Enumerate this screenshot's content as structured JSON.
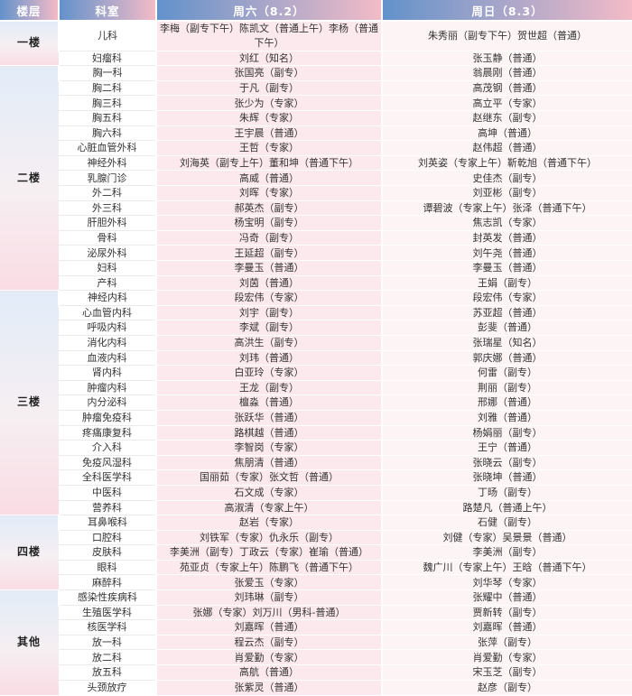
{
  "colors": {
    "header_gradient_left": "#6292cb",
    "header_gradient_right": "#f3bbc7",
    "saturday_cell_bg": "#fbe9ed",
    "sunday_cell_bg": "#fdf4f6",
    "floor_cell_blue": "#e2ecf8",
    "floor_cell_pink": "#fadce4",
    "header_text": "#ffffff",
    "body_text": "#333333"
  },
  "table": {
    "headers": {
      "floor": "楼层",
      "department": "科室",
      "saturday": "周六（8.2）",
      "sunday": "周日（8.3）"
    },
    "groups": [
      {
        "floor": "一楼",
        "rows": [
          {
            "dept": "儿科",
            "sat": "李梅（副专下午）陈凯文（普通上午）李杨（普通下午）",
            "sun": "朱秀丽（副专下午）贺世超（普通）",
            "tall": true
          },
          {
            "dept": "妇瘤科",
            "sat": "刘红（知名）",
            "sun": "张玉静（普通）"
          }
        ]
      },
      {
        "floor": "二楼",
        "rows": [
          {
            "dept": "胸一科",
            "sat": "张国亮（副专）",
            "sun": "翁晨刚（普通）"
          },
          {
            "dept": "胸二科",
            "sat": "于凡（副专）",
            "sun": "高茂钢（普通）"
          },
          {
            "dept": "胸三科",
            "sat": "张少为（专家）",
            "sun": "高立平（专家）"
          },
          {
            "dept": "胸五科",
            "sat": "朱辉（专家）",
            "sun": "赵继东（副专）"
          },
          {
            "dept": "胸六科",
            "sat": "王宇晨（普通）",
            "sun": "高坤（普通）"
          },
          {
            "dept": "心脏血管外科",
            "sat": "王哲（专家）",
            "sun": "赵伟超（普通）"
          },
          {
            "dept": "神经外科",
            "sat": "刘海英（副专上午）董和坤（普通下午）",
            "sun": "刘英姿（专家上午）靳乾旭（普通下午）"
          },
          {
            "dept": "乳腺门诊",
            "sat": "高威（普通）",
            "sun": "史佳杰（副专）"
          },
          {
            "dept": "外二科",
            "sat": "刘晖（专家）",
            "sun": "刘亚彬（副专）"
          },
          {
            "dept": "外三科",
            "sat": "郝英杰（副专）",
            "sun": "谭碧波（专家上午）张泽（普通下午）"
          },
          {
            "dept": "肝胆外科",
            "sat": "杨宝明（副专）",
            "sun": "焦志凯（专家）"
          },
          {
            "dept": "骨科",
            "sat": "冯奇（副专）",
            "sun": "封英发（普通）"
          },
          {
            "dept": "泌尿外科",
            "sat": "王延超（副专）",
            "sun": "刘午尧（普通）"
          },
          {
            "dept": "妇科",
            "sat": "李曼玉（普通）",
            "sun": "李曼玉（普通）"
          },
          {
            "dept": "产科",
            "sat": "刘茵（普通）",
            "sun": "王娟（副专）"
          }
        ]
      },
      {
        "floor": "三楼",
        "rows": [
          {
            "dept": "神经内科",
            "sat": "段宏伟（专家）",
            "sun": "段宏伟（专家）"
          },
          {
            "dept": "心血管内科",
            "sat": "刘宇（副专）",
            "sun": "苏亚超（普通）"
          },
          {
            "dept": "呼吸内科",
            "sat": "李斌（副专）",
            "sun": "彭斐（普通）"
          },
          {
            "dept": "消化内科",
            "sat": "高洪生（副专）",
            "sun": "张瑞星（知名）"
          },
          {
            "dept": "血液内科",
            "sat": "刘玮（普通）",
            "sun": "郭庆娜（普通）"
          },
          {
            "dept": "肾内科",
            "sat": "白亚玲（专家）",
            "sun": "何雷（副专）"
          },
          {
            "dept": "肿瘤内科",
            "sat": "王龙（副专）",
            "sun": "荆丽（副专）"
          },
          {
            "dept": "内分泌科",
            "sat": "檀淼（普通）",
            "sun": "邢娜（普通）"
          },
          {
            "dept": "肿瘤免疫科",
            "sat": "张跃华（普通）",
            "sun": "刘雅（普通）"
          },
          {
            "dept": "疼痛康复科",
            "sat": "路棋越（普通）",
            "sun": "杨娟丽（副专）"
          },
          {
            "dept": "介入科",
            "sat": "李智岗（专家）",
            "sun": "王宁（普通）"
          },
          {
            "dept": "免疫风湿科",
            "sat": "焦朋清（普通）",
            "sun": "张晓云（副专）"
          },
          {
            "dept": "全科医学科",
            "sat": "国丽茹（专家）张文哲（普通）",
            "sun": "张晓坤（普通）"
          },
          {
            "dept": "中医科",
            "sat": "石文成（专家）",
            "sun": "丁旸（副专）"
          },
          {
            "dept": "营养科",
            "sat": "高淑清（专家上午）",
            "sun": "路楚凡（普通上午）"
          }
        ]
      },
      {
        "floor": "四楼",
        "rows": [
          {
            "dept": "耳鼻喉科",
            "sat": "赵岩（专家）",
            "sun": "石健（副专）"
          },
          {
            "dept": "口腔科",
            "sat": "刘铁军（专家）仇永乐（副专）",
            "sun": "刘健（专家）吴景景（普通）"
          },
          {
            "dept": "皮肤科",
            "sat": "李美洲（副专）丁政云（专家）崔瑜（普通）",
            "sun": "李美洲（副专）"
          },
          {
            "dept": "眼科",
            "sat": "苑亚贞（专家上午）陈鹏飞（普通下午）",
            "sun": "魏广川（专家上午）王晗（普通下午）"
          },
          {
            "dept": "麻醉科",
            "sat": "张爱玉（专家）",
            "sun": "刘华琴（专家）"
          }
        ]
      },
      {
        "floor": "其他",
        "rows": [
          {
            "dept": "感染性疾病科",
            "sat": "刘玮琳（副专）",
            "sun": "张耀中（普通）"
          },
          {
            "dept": "生殖医学科",
            "sat": "张娜（专家）刘万川（男科-普通）",
            "sun": "贾新转（副专）"
          },
          {
            "dept": "核医学科",
            "sat": "刘嘉晖（普通）",
            "sun": "刘嘉晖（普通）"
          },
          {
            "dept": "放一科",
            "sat": "程云杰（副专）",
            "sun": "张萍（副专）"
          },
          {
            "dept": "放二科",
            "sat": "肖爱勤（专家）",
            "sun": "肖爱勤（专家）"
          },
          {
            "dept": "放五科",
            "sat": "高航（普通）",
            "sun": "宋玉芝（副专）"
          },
          {
            "dept": "头颈放疗",
            "sat": "张紫灵（普通）",
            "sun": "赵彦（副专）"
          }
        ]
      }
    ]
  }
}
